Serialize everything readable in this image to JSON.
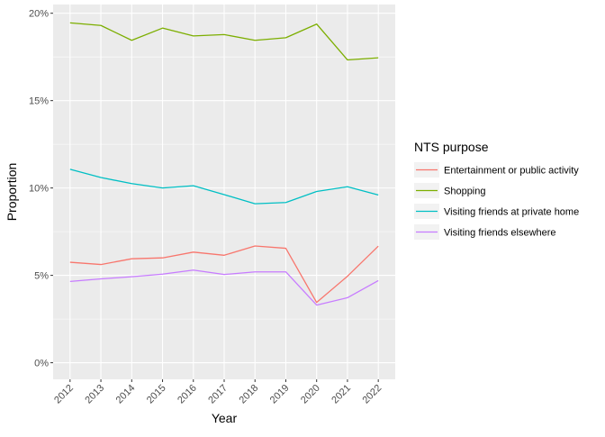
{
  "chart_data": {
    "type": "line",
    "title": "",
    "xlabel": "Year",
    "ylabel": "Proportion",
    "x": [
      2012,
      2013,
      2014,
      2015,
      2016,
      2017,
      2018,
      2019,
      2020,
      2021,
      2022
    ],
    "x_tick_labels": [
      "2012",
      "2013",
      "2014",
      "2015",
      "2016",
      "2017",
      "2018",
      "2019",
      "2020",
      "2021",
      "2022"
    ],
    "y_ticks": [
      0,
      5,
      10,
      15,
      20
    ],
    "y_tick_labels": [
      "0%",
      "5%",
      "10%",
      "15%",
      "20%"
    ],
    "ylim": [
      -0.95,
      20.5
    ],
    "grid": true,
    "legend": {
      "title": "NTS purpose",
      "position": "right"
    },
    "series": [
      {
        "name": "Entertainment or public activity",
        "color": "#F8766D",
        "values": [
          5.75,
          5.62,
          5.95,
          6.0,
          6.33,
          6.15,
          6.68,
          6.55,
          3.45,
          4.95,
          6.67
        ]
      },
      {
        "name": "Shopping",
        "color": "#7CAE00",
        "values": [
          19.45,
          19.3,
          18.45,
          19.15,
          18.7,
          18.78,
          18.45,
          18.6,
          19.38,
          17.33,
          17.45
        ]
      },
      {
        "name": "Visiting friends at private home",
        "color": "#00BFC4",
        "values": [
          11.07,
          10.6,
          10.25,
          10.0,
          10.13,
          9.62,
          9.1,
          9.17,
          9.8,
          10.07,
          9.6
        ]
      },
      {
        "name": "Visiting friends elsewhere",
        "color": "#C77CFF",
        "values": [
          4.65,
          4.8,
          4.92,
          5.07,
          5.3,
          5.05,
          5.2,
          5.2,
          3.3,
          3.72,
          4.7
        ]
      }
    ]
  }
}
